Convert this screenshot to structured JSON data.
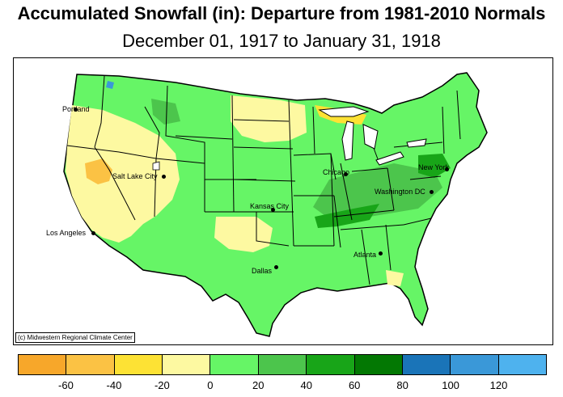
{
  "title": "Accumulated Snowfall (in): Departure from 1981-2010 Normals",
  "subtitle": "December 01, 1917 to January 31, 1918",
  "credit": "(c) Midwestern Regional Climate Center",
  "cities": [
    {
      "name": "Portland",
      "key": "portland"
    },
    {
      "name": "Salt Lake City",
      "key": "salt-lake-city"
    },
    {
      "name": "Los Angeles",
      "key": "los-angeles"
    },
    {
      "name": "Kansas City",
      "key": "kansas-city"
    },
    {
      "name": "Dallas",
      "key": "dallas"
    },
    {
      "name": "Chicago",
      "key": "chicago"
    },
    {
      "name": "Washington DC",
      "key": "washington-dc"
    },
    {
      "name": "New York",
      "key": "new-york"
    },
    {
      "name": "Atlanta",
      "key": "atlanta"
    }
  ],
  "legend": {
    "colors": [
      "#f7a72a",
      "#fbc244",
      "#fde234",
      "#fdf9a1",
      "#66f566",
      "#4cc54c",
      "#18a518",
      "#037803",
      "#1a74b8",
      "#3a98d8",
      "#4eb2ee"
    ],
    "tick_labels": [
      "-60",
      "-40",
      "-20",
      "0",
      "20",
      "40",
      "60",
      "80",
      "100",
      "120"
    ]
  },
  "palette": {
    "land_green": "#66f566",
    "mid_green": "#4cc54c",
    "dark_green": "#18a518",
    "tan": "#fdf9a1",
    "yellow": "#fde234",
    "orange": "#fbc244",
    "blue": "#3a98d8"
  }
}
